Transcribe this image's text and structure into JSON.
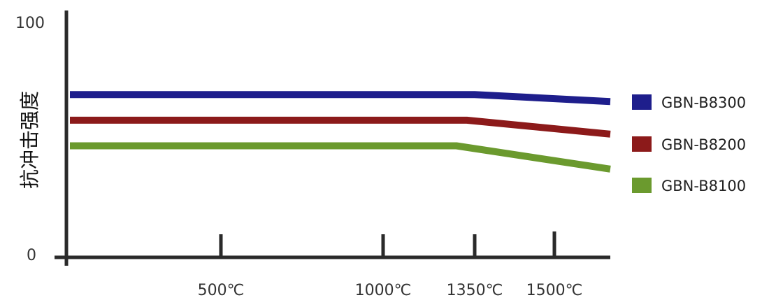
{
  "chart_data": {
    "type": "line",
    "ylabel": "抗冲击强度",
    "xlabel": "",
    "ylim": [
      0,
      100
    ],
    "y_ticks": [
      "0",
      "100"
    ],
    "x_points": [
      0,
      1500
    ],
    "x_ticks": [
      {
        "value": 500,
        "label": "500℃"
      },
      {
        "value": 1000,
        "label": "1000℃"
      },
      {
        "value": 1350,
        "label": "1350℃"
      },
      {
        "value": 1500,
        "label": "1500℃"
      }
    ],
    "series": [
      {
        "name": "GBN-B8300",
        "color": "#1e1e8c",
        "points": [
          [
            0,
            69
          ],
          [
            1350,
            69
          ],
          [
            1600,
            66
          ]
        ]
      },
      {
        "name": "GBN-B8200",
        "color": "#8c1a1a",
        "points": [
          [
            0,
            58
          ],
          [
            1320,
            58
          ],
          [
            1600,
            52
          ]
        ]
      },
      {
        "name": "GBN-B8100",
        "color": "#6b9a2e",
        "points": [
          [
            0,
            47
          ],
          [
            1280,
            47
          ],
          [
            1600,
            37
          ]
        ]
      }
    ],
    "legend_position": "right",
    "grid": false
  }
}
